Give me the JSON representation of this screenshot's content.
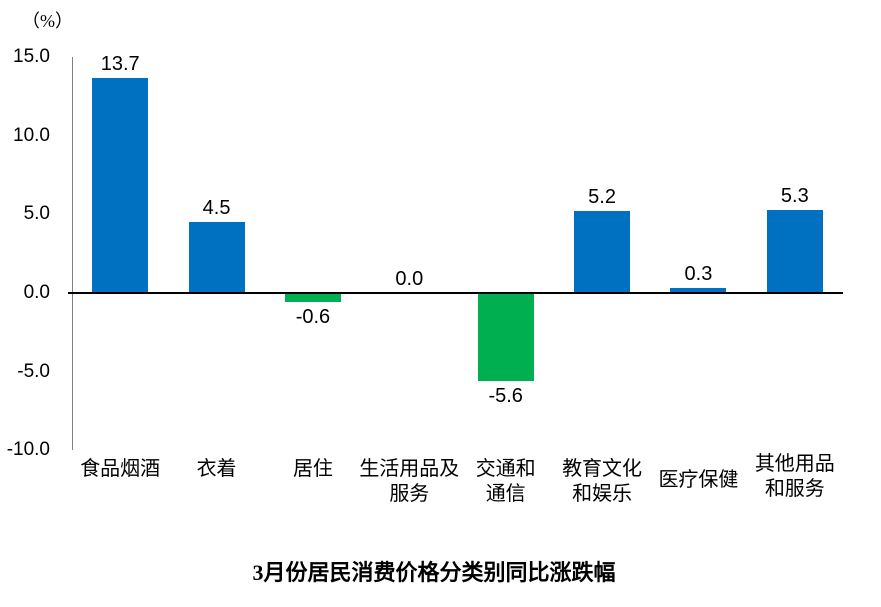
{
  "chart_data": {
    "type": "bar",
    "title": "3月份居民消费价格分类别同比涨跌幅",
    "unit_label": "（%）",
    "categories": [
      "食品烟酒",
      "衣着",
      "居住",
      "生活用品及服务",
      "交通和通信",
      "教育文化和娱乐",
      "医疗保健",
      "其他用品和服务"
    ],
    "category_lines": [
      [
        "食品烟酒"
      ],
      [
        "衣着"
      ],
      [
        "居住"
      ],
      [
        "生活用品及",
        "服务"
      ],
      [
        "交通和",
        "通信"
      ],
      [
        "教育文化",
        "和娱乐"
      ],
      [
        "医疗保健"
      ],
      [
        "其他用品",
        "和服务"
      ]
    ],
    "values": [
      13.7,
      4.5,
      -0.6,
      0.0,
      -5.6,
      5.2,
      0.3,
      5.3
    ],
    "value_labels": [
      "13.7",
      "4.5",
      "-0.6",
      "0.0",
      "-5.6",
      "5.2",
      "0.3",
      "5.3"
    ],
    "xlabel": "",
    "ylabel": "（%）",
    "ylim": [
      -10,
      15
    ],
    "ytick_step": 5,
    "ytick_labels": [
      "15.0",
      "10.0",
      "5.0",
      "0.0",
      "-5.0",
      "-10.0"
    ],
    "grid": false,
    "legend": false,
    "colors": {
      "positive_bar": "#0070C0",
      "negative_bar": "#00B050",
      "axis_line": "#808080",
      "zero_line": "#000000",
      "text": "#000000"
    }
  }
}
